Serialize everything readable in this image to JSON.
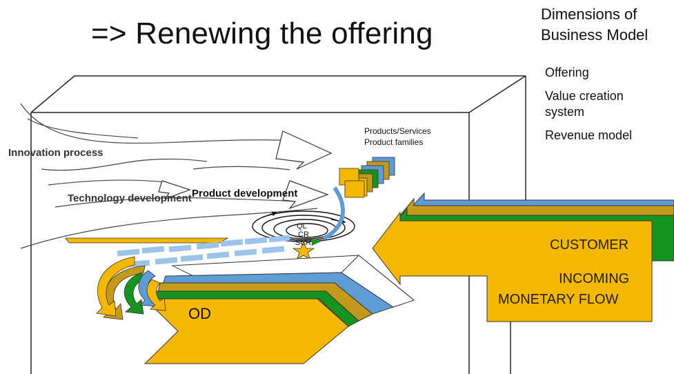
{
  "title": "=> Renewing the offering",
  "dimensions": {
    "title_line1": "Dimensions of",
    "title_line2": "Business Model",
    "items": [
      "Offering",
      "Value creation system",
      "Revenue model"
    ]
  },
  "diagram": {
    "innovation_process": "Innovation process",
    "technology_development": "Technology development",
    "product_development": "Product development",
    "products_line1": "Products/Services",
    "products_line2": "Product families",
    "ql": "QL",
    "cr": "CR",
    "scr": "SCR",
    "od": "OD",
    "customer": "CUSTOMER",
    "incoming_line1": "INCOMING",
    "incoming_line2": "MONETARY FLOW"
  },
  "colors": {
    "yellow": "#f5b700",
    "gold": "#c49a1c",
    "green": "#16941f",
    "blue": "#5f9bd5",
    "light_blue": "#9cc3ea",
    "orange_box": "#f2a900"
  }
}
